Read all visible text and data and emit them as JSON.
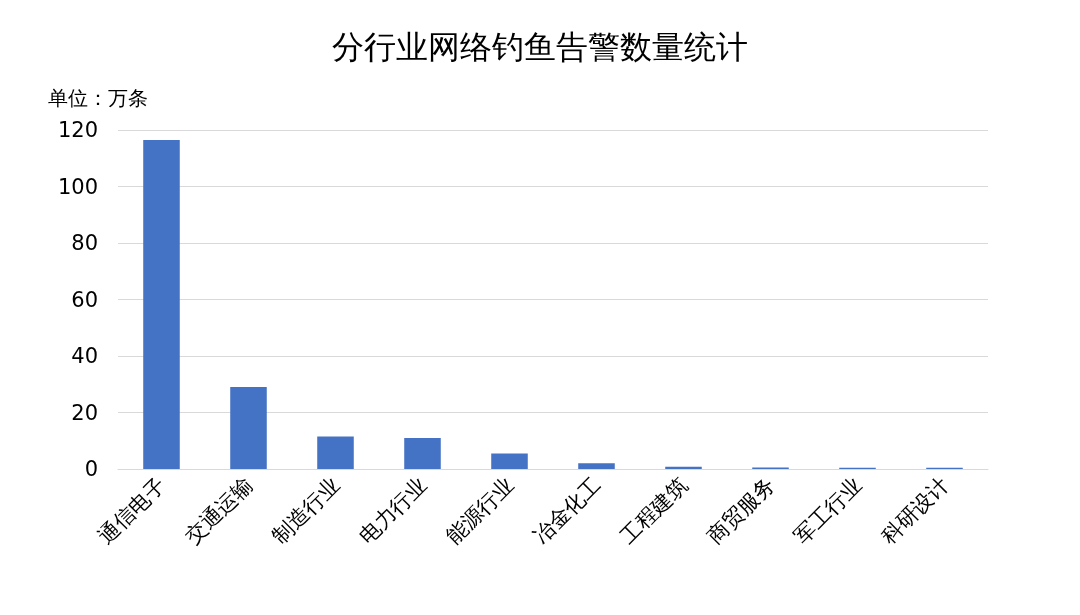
{
  "chart_data": {
    "type": "bar",
    "title": "分行业网络钓鱼告警数量统计",
    "ylabel": "单位：万条",
    "categories": [
      "通信电子",
      "交通运输",
      "制造行业",
      "电力行业",
      "能源行业",
      "冶金化工",
      "工程建筑",
      "商贸服务",
      "军工行业",
      "科研设计"
    ],
    "values": [
      116.5,
      29,
      11.5,
      11,
      5.5,
      2,
      0.8,
      0.5,
      0.4,
      0.4
    ],
    "color": "#4472c4",
    "ylim": [
      0,
      120
    ],
    "yticks": [
      0,
      20,
      40,
      60,
      80,
      100,
      120
    ],
    "grid": "y"
  }
}
